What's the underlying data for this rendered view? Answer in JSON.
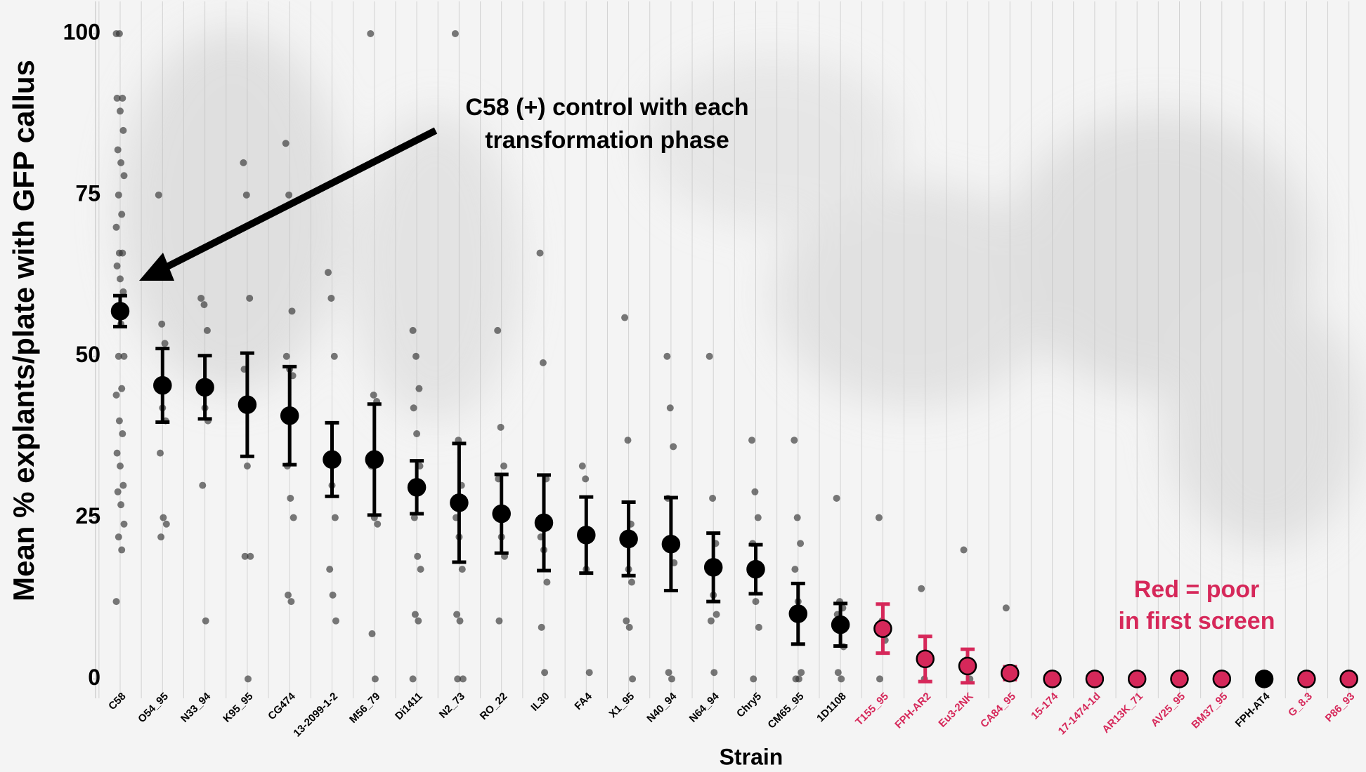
{
  "chart_data": {
    "type": "errorbar",
    "ylabel": "Mean % explants/plate  with GFP callus",
    "xlabel": "Strain",
    "annotation": [
      "C58 (+) control with each",
      "transformation phase"
    ],
    "note": [
      "Red = poor",
      "in first screen"
    ],
    "note_color": "#d6285a",
    "categories": [
      "C58",
      "O54_95",
      "N33_94",
      "K95_95",
      "CG474",
      "13-2099-1-2",
      "M56_79",
      "Di1411",
      "N2_73",
      "RO_22",
      "IL30",
      "FA4",
      "X1_95",
      "N40_94",
      "N64_94",
      "Chry5",
      "CM65_95",
      "1D1108",
      "T155_95",
      "FPH-AR2",
      "Eu3-2NK",
      "CA84_95",
      "15-174",
      "17-1474-1d",
      "AR13K_71",
      "AV25_95",
      "BM37_95",
      "FPH-AT4",
      "G_8.3",
      "P86_93"
    ],
    "means": [
      57,
      45.5,
      45.2,
      42.5,
      40.8,
      34,
      34,
      29.7,
      27.3,
      25.6,
      24.2,
      22.3,
      21.7,
      20.9,
      17.3,
      17,
      10.1,
      8.4,
      7.8,
      3.1,
      2,
      0.9,
      0,
      0,
      0,
      0,
      0,
      0,
      0,
      0
    ],
    "errors": [
      2.4,
      5.7,
      4.9,
      8,
      7.6,
      5.7,
      8.6,
      4.1,
      9.2,
      6.1,
      7.4,
      5.9,
      5.7,
      7.2,
      5.3,
      3.8,
      4.7,
      3.3,
      3.8,
      3.5,
      2.6,
      1,
      null,
      null,
      null,
      null,
      null,
      null,
      null,
      null
    ],
    "colors": [
      "#000000",
      "#000000",
      "#000000",
      "#000000",
      "#000000",
      "#000000",
      "#000000",
      "#000000",
      "#000000",
      "#000000",
      "#000000",
      "#000000",
      "#000000",
      "#000000",
      "#000000",
      "#000000",
      "#000000",
      "#000000",
      "#d6285a",
      "#d6285a",
      "#d6285a",
      "#d6285a",
      "#d6285a",
      "#d6285a",
      "#d6285a",
      "#d6285a",
      "#d6285a",
      "#000000",
      "#d6285a",
      "#d6285a"
    ],
    "points": [
      [
        100,
        100,
        90,
        90,
        88,
        85,
        82,
        80,
        78,
        75,
        72,
        70,
        66,
        66,
        64,
        62,
        60,
        57,
        55,
        50,
        50,
        45,
        44,
        40,
        38,
        35,
        33,
        30,
        29,
        27,
        24,
        22,
        20,
        12
      ],
      [
        75,
        55,
        52,
        45,
        42,
        40,
        35,
        25,
        24,
        22
      ],
      [
        59,
        58,
        54,
        45,
        42,
        40,
        30,
        9
      ],
      [
        80,
        75,
        59,
        48,
        33,
        19,
        19,
        0
      ],
      [
        83,
        75,
        57,
        50,
        48,
        47,
        33,
        28,
        25,
        13,
        12
      ],
      [
        63,
        59,
        50,
        34,
        30,
        25,
        17,
        13,
        9
      ],
      [
        100,
        44,
        43,
        33,
        25,
        24,
        7,
        0
      ],
      [
        54,
        50,
        45,
        42,
        38,
        33,
        25,
        19,
        17,
        10,
        9,
        0
      ],
      [
        100,
        37,
        30,
        25,
        22,
        17,
        10,
        9,
        0,
        0
      ],
      [
        54,
        39,
        33,
        31,
        22,
        19,
        9
      ],
      [
        66,
        49,
        31,
        22,
        20,
        15,
        8,
        1
      ],
      [
        33,
        31,
        23,
        22,
        17,
        1
      ],
      [
        56,
        37,
        24,
        21,
        17,
        15,
        9,
        8,
        0
      ],
      [
        50,
        42,
        36,
        28,
        20,
        18,
        1,
        0
      ],
      [
        50,
        28,
        21,
        17,
        13,
        10,
        9,
        1
      ],
      [
        37,
        29,
        25,
        21,
        12,
        8,
        0
      ],
      [
        37,
        25,
        21,
        17,
        12,
        1,
        0,
        0
      ],
      [
        28,
        12,
        11,
        10,
        8,
        5,
        1,
        0
      ],
      [
        25,
        9,
        6,
        0
      ],
      [
        14,
        0
      ],
      [
        20,
        3,
        0
      ],
      [
        11,
        0
      ],
      [],
      [],
      [],
      [],
      [],
      [],
      [],
      []
    ],
    "ylim": [
      -3,
      105
    ],
    "yticks": [
      0,
      25,
      50,
      75,
      100
    ]
  }
}
